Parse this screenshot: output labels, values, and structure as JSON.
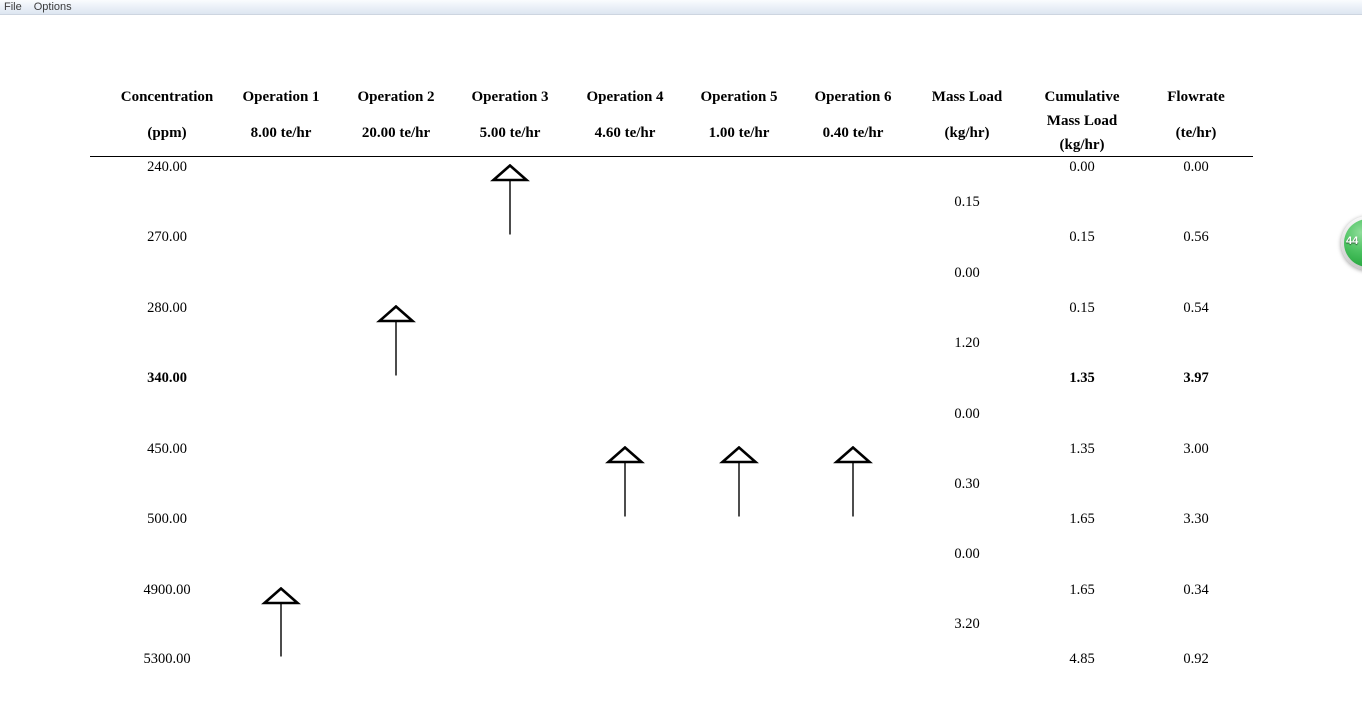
{
  "window": {
    "menu": [
      {
        "label": "File"
      },
      {
        "label": "Options"
      }
    ]
  },
  "table": {
    "columns": [
      {
        "title": "Concentration",
        "lines": [
          "(ppm)"
        ]
      },
      {
        "title": "Operation 1",
        "lines": [
          "8.00 te/hr"
        ]
      },
      {
        "title": "Operation 2",
        "lines": [
          "20.00 te/hr"
        ]
      },
      {
        "title": "Operation 3",
        "lines": [
          "5.00 te/hr"
        ]
      },
      {
        "title": "Operation 4",
        "lines": [
          "4.60 te/hr"
        ]
      },
      {
        "title": "Operation 5",
        "lines": [
          "1.00 te/hr"
        ]
      },
      {
        "title": "Operation 6",
        "lines": [
          "0.40 te/hr"
        ]
      },
      {
        "title": "Mass Load",
        "lines": [
          "(kg/hr)"
        ]
      },
      {
        "title": "Cumulative",
        "lines": [
          "Mass Load",
          "(kg/hr)"
        ]
      },
      {
        "title": "Flowrate",
        "lines": [
          "(te/hr)"
        ]
      }
    ],
    "rows": [
      {
        "concentration": "240.00",
        "cumulative_mass_load": "0.00",
        "flowrate": "0.00",
        "bold": false
      },
      {
        "concentration": "270.00",
        "cumulative_mass_load": "0.15",
        "flowrate": "0.56",
        "bold": false
      },
      {
        "concentration": "280.00",
        "cumulative_mass_load": "0.15",
        "flowrate": "0.54",
        "bold": false
      },
      {
        "concentration": "340.00",
        "cumulative_mass_load": "1.35",
        "flowrate": "3.97",
        "bold": true
      },
      {
        "concentration": "450.00",
        "cumulative_mass_load": "1.35",
        "flowrate": "3.00",
        "bold": false
      },
      {
        "concentration": "500.00",
        "cumulative_mass_load": "1.65",
        "flowrate": "3.30",
        "bold": false
      },
      {
        "concentration": "4900.00",
        "cumulative_mass_load": "1.65",
        "flowrate": "0.34",
        "bold": false
      },
      {
        "concentration": "5300.00",
        "cumulative_mass_load": "4.85",
        "flowrate": "0.92",
        "bold": false
      }
    ],
    "mass_loads": [
      "0.15",
      "0.00",
      "1.20",
      "0.00",
      "0.30",
      "0.00",
      "3.20"
    ],
    "arrows": [
      {
        "operation": "Operation 1",
        "column_index": 1,
        "from_row": 6,
        "to_row": 7,
        "from_concentration": "4900.00",
        "to_concentration": "5300.00"
      },
      {
        "operation": "Operation 2",
        "column_index": 2,
        "from_row": 2,
        "to_row": 3,
        "from_concentration": "280.00",
        "to_concentration": "340.00"
      },
      {
        "operation": "Operation 3",
        "column_index": 3,
        "from_row": 0,
        "to_row": 1,
        "from_concentration": "240.00",
        "to_concentration": "270.00"
      },
      {
        "operation": "Operation 4",
        "column_index": 4,
        "from_row": 4,
        "to_row": 5,
        "from_concentration": "450.00",
        "to_concentration": "500.00"
      },
      {
        "operation": "Operation 5",
        "column_index": 5,
        "from_row": 4,
        "to_row": 5,
        "from_concentration": "450.00",
        "to_concentration": "500.00"
      },
      {
        "operation": "Operation 6",
        "column_index": 6,
        "from_row": 4,
        "to_row": 5,
        "from_concentration": "450.00",
        "to_concentration": "500.00"
      }
    ]
  },
  "overlay": {
    "badge_label": "44",
    "badge_color": "#2fae47"
  }
}
